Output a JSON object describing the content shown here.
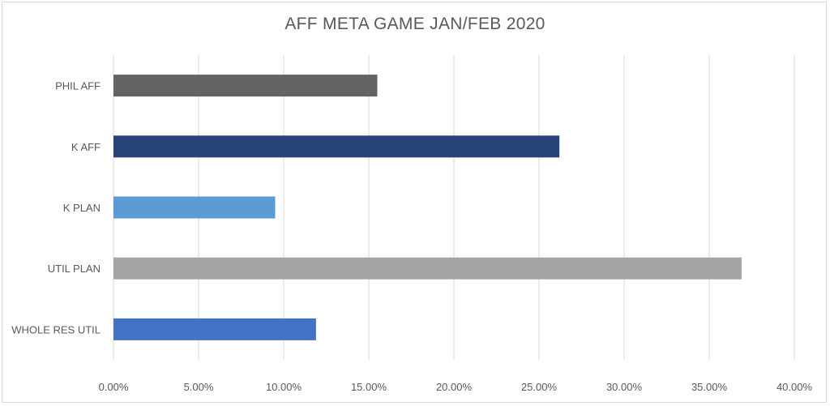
{
  "chart_data": {
    "type": "bar",
    "orientation": "horizontal",
    "title": "AFF META GAME JAN/FEB 2020",
    "categories": [
      "PHIL AFF",
      "K AFF",
      "K PLAN",
      "UTIL PLAN",
      "WHOLE RES UTIL"
    ],
    "values": [
      15.5,
      26.2,
      9.5,
      36.9,
      11.9
    ],
    "colors": [
      "#636363",
      "#264478",
      "#5b9bd5",
      "#a5a5a5",
      "#4472c4"
    ],
    "x_ticks": [
      "0.00%",
      "5.00%",
      "10.00%",
      "15.00%",
      "20.00%",
      "25.00%",
      "30.00%",
      "35.00%",
      "40.00%"
    ],
    "xlim": [
      0,
      40
    ],
    "xlabel": "",
    "ylabel": "",
    "grid": true,
    "legend": "none"
  }
}
